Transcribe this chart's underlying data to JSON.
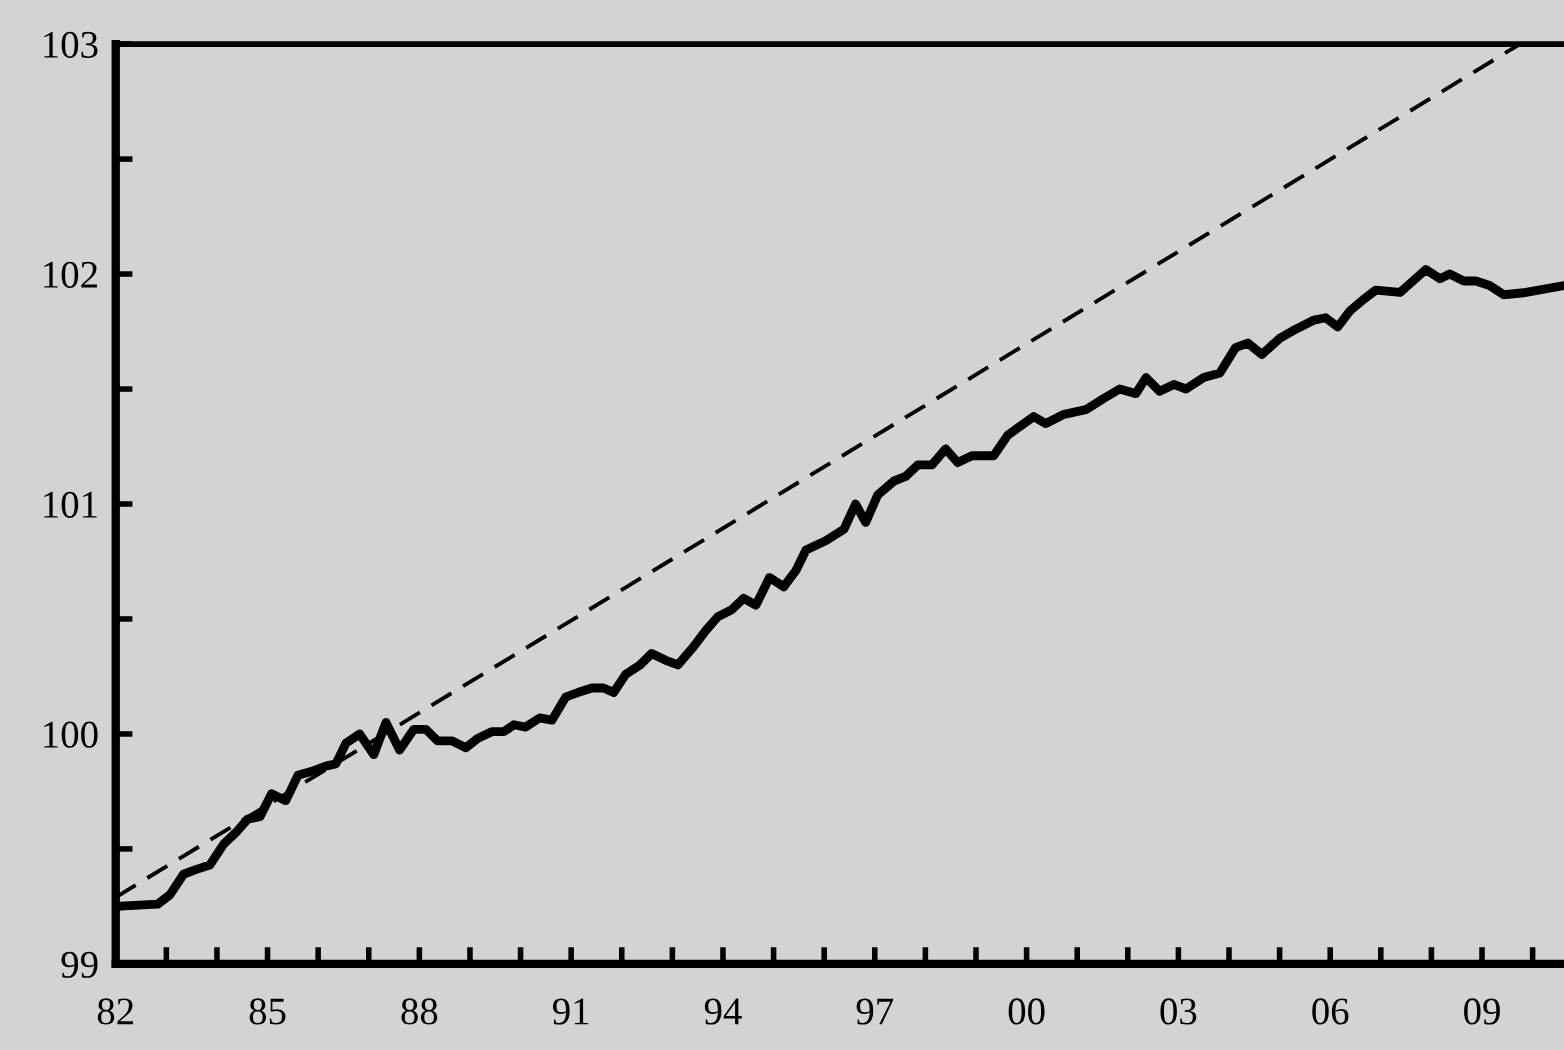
{
  "chart_data": {
    "type": "line",
    "series": [
      {
        "color": "#000000",
        "line_style": "solid",
        "x": [
          1982.0,
          1982.83,
          1983.07,
          1983.34,
          1983.58,
          1983.86,
          1984.13,
          1984.37,
          1984.61,
          1984.85,
          1985.08,
          1985.36,
          1985.6,
          1985.91,
          1986.15,
          1986.35,
          1986.55,
          1986.82,
          1987.1,
          1987.34,
          1987.61,
          1987.89,
          1988.13,
          1988.36,
          1988.64,
          1988.92,
          1989.15,
          1989.43,
          1989.67,
          1989.87,
          1990.1,
          1990.38,
          1990.62,
          1990.89,
          1991.13,
          1991.41,
          1991.64,
          1991.84,
          1992.08,
          1992.36,
          1992.59,
          1992.87,
          1993.11,
          1993.42,
          1993.66,
          1993.9,
          1994.17,
          1994.41,
          1994.65,
          1994.92,
          1995.2,
          1995.44,
          1995.64,
          1996.03,
          1996.39,
          1996.62,
          1996.82,
          1997.06,
          1997.38,
          1997.61,
          1997.85,
          1998.13,
          1998.4,
          1998.64,
          1998.92,
          1999.35,
          1999.63,
          2000.14,
          2000.38,
          2000.74,
          2001.17,
          2001.53,
          2001.84,
          2002.16,
          2002.36,
          2002.63,
          2002.91,
          2003.15,
          2003.5,
          2003.82,
          2004.13,
          2004.37,
          2004.65,
          2005.0,
          2005.32,
          2005.68,
          2005.91,
          2006.15,
          2006.39,
          2006.66,
          2006.9,
          2007.38,
          2007.89,
          2008.17,
          2008.36,
          2008.64,
          2008.88,
          2009.15,
          2009.43,
          2009.87,
          2010.62
        ],
        "values": [
          99.25,
          99.26,
          99.3,
          99.39,
          99.41,
          99.43,
          99.52,
          99.57,
          99.63,
          99.64,
          99.74,
          99.71,
          99.82,
          99.84,
          99.86,
          99.87,
          99.96,
          100.0,
          99.91,
          100.05,
          99.93,
          100.02,
          100.02,
          99.97,
          99.97,
          99.94,
          99.98,
          100.01,
          100.01,
          100.04,
          100.03,
          100.07,
          100.06,
          100.16,
          100.18,
          100.2,
          100.2,
          100.18,
          100.26,
          100.3,
          100.35,
          100.32,
          100.3,
          100.38,
          100.45,
          100.51,
          100.54,
          100.59,
          100.56,
          100.68,
          100.64,
          100.71,
          100.8,
          100.84,
          100.89,
          101.0,
          100.92,
          101.04,
          101.1,
          101.12,
          101.17,
          101.17,
          101.24,
          101.18,
          101.21,
          101.21,
          101.3,
          101.38,
          101.35,
          101.39,
          101.41,
          101.46,
          101.5,
          101.48,
          101.55,
          101.49,
          101.52,
          101.5,
          101.55,
          101.57,
          101.68,
          101.7,
          101.65,
          101.72,
          101.76,
          101.8,
          101.81,
          101.77,
          101.84,
          101.89,
          101.93,
          101.92,
          102.02,
          101.98,
          102.0,
          101.97,
          101.97,
          101.95,
          101.91,
          101.92,
          101.95
        ]
      },
      {
        "color": "#000000",
        "line_style": "dashed",
        "x": [
          1982.0,
          2009.75
        ],
        "values": [
          99.29,
          103.0
        ]
      }
    ],
    "xlim": [
      1982,
      2010.62
    ],
    "xticks": [
      {
        "value": 1982,
        "label": "82"
      },
      {
        "value": 1983,
        "label": null
      },
      {
        "value": 1984,
        "label": null
      },
      {
        "value": 1985,
        "label": "85"
      },
      {
        "value": 1986,
        "label": null
      },
      {
        "value": 1987,
        "label": null
      },
      {
        "value": 1988,
        "label": "88"
      },
      {
        "value": 1989,
        "label": null
      },
      {
        "value": 1990,
        "label": null
      },
      {
        "value": 1991,
        "label": "91"
      },
      {
        "value": 1992,
        "label": null
      },
      {
        "value": 1993,
        "label": null
      },
      {
        "value": 1994,
        "label": "94"
      },
      {
        "value": 1995,
        "label": null
      },
      {
        "value": 1996,
        "label": null
      },
      {
        "value": 1997,
        "label": "97"
      },
      {
        "value": 1998,
        "label": null
      },
      {
        "value": 1999,
        "label": null
      },
      {
        "value": 2000,
        "label": "00"
      },
      {
        "value": 2001,
        "label": null
      },
      {
        "value": 2002,
        "label": null
      },
      {
        "value": 2003,
        "label": "03"
      },
      {
        "value": 2004,
        "label": null
      },
      {
        "value": 2005,
        "label": null
      },
      {
        "value": 2006,
        "label": "06"
      },
      {
        "value": 2007,
        "label": null
      },
      {
        "value": 2008,
        "label": null
      },
      {
        "value": 2009,
        "label": "09"
      },
      {
        "value": 2010,
        "label": null
      }
    ],
    "ylim": [
      99,
      103
    ],
    "yticks": [
      99,
      {
        "value": 99.5,
        "label": null
      },
      100,
      {
        "value": 100.5,
        "label": null
      },
      101,
      {
        "value": 101.5,
        "label": null
      },
      102,
      {
        "value": 102.5,
        "label": null
      },
      103
    ],
    "grid": false,
    "legend": false
  }
}
